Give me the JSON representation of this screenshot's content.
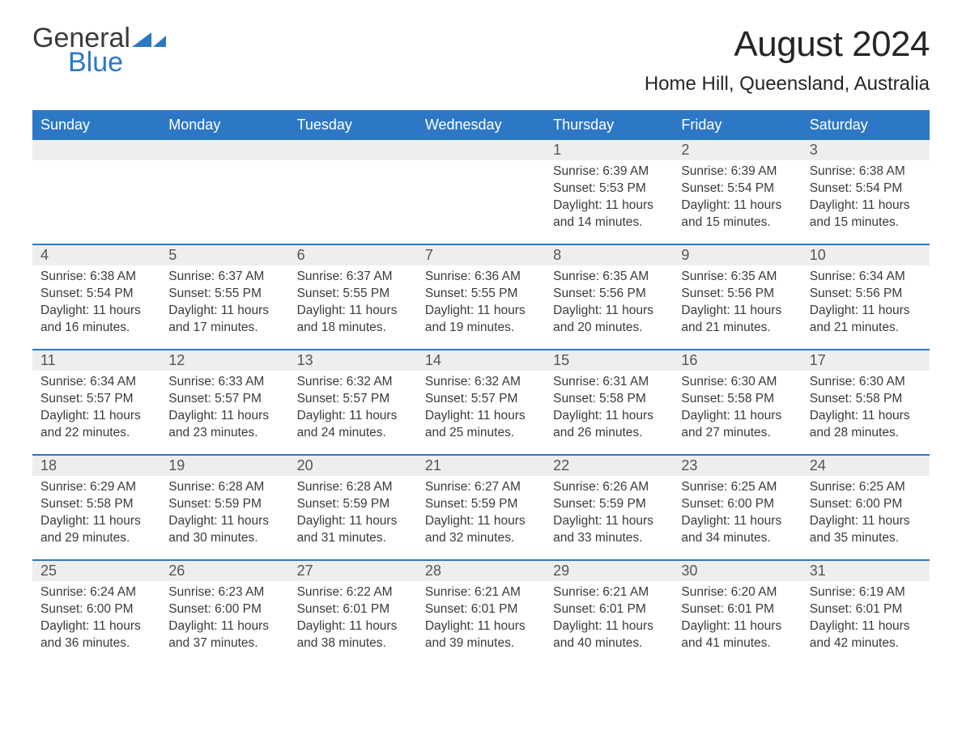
{
  "brand": {
    "word1": "General",
    "word2": "Blue",
    "triangle_color": "#2d78c6",
    "word1_color": "#3a3a3a",
    "word2_color": "#2d78c6"
  },
  "title": "August 2024",
  "location": "Home Hill, Queensland, Australia",
  "colors": {
    "header_bg": "#2d78c6",
    "header_text": "#ffffff",
    "daynum_bg": "#eceeef",
    "text": "#3a3a3a",
    "week_border": "#2d78c6",
    "page_bg": "#ffffff"
  },
  "fonts": {
    "title_size_pt": 33,
    "location_size_pt": 18,
    "dow_size_pt": 13,
    "daynum_size_pt": 13,
    "body_size_pt": 11.5
  },
  "days_of_week": [
    "Sunday",
    "Monday",
    "Tuesday",
    "Wednesday",
    "Thursday",
    "Friday",
    "Saturday"
  ],
  "labels": {
    "sunrise": "Sunrise:",
    "sunset": "Sunset:",
    "daylight": "Daylight:"
  },
  "weeks": [
    [
      {
        "n": "",
        "empty": true
      },
      {
        "n": "",
        "empty": true
      },
      {
        "n": "",
        "empty": true
      },
      {
        "n": "",
        "empty": true
      },
      {
        "n": "1",
        "sunrise": "6:39 AM",
        "sunset": "5:53 PM",
        "daylight": "11 hours and 14 minutes."
      },
      {
        "n": "2",
        "sunrise": "6:39 AM",
        "sunset": "5:54 PM",
        "daylight": "11 hours and 15 minutes."
      },
      {
        "n": "3",
        "sunrise": "6:38 AM",
        "sunset": "5:54 PM",
        "daylight": "11 hours and 15 minutes."
      }
    ],
    [
      {
        "n": "4",
        "sunrise": "6:38 AM",
        "sunset": "5:54 PM",
        "daylight": "11 hours and 16 minutes."
      },
      {
        "n": "5",
        "sunrise": "6:37 AM",
        "sunset": "5:55 PM",
        "daylight": "11 hours and 17 minutes."
      },
      {
        "n": "6",
        "sunrise": "6:37 AM",
        "sunset": "5:55 PM",
        "daylight": "11 hours and 18 minutes."
      },
      {
        "n": "7",
        "sunrise": "6:36 AM",
        "sunset": "5:55 PM",
        "daylight": "11 hours and 19 minutes."
      },
      {
        "n": "8",
        "sunrise": "6:35 AM",
        "sunset": "5:56 PM",
        "daylight": "11 hours and 20 minutes."
      },
      {
        "n": "9",
        "sunrise": "6:35 AM",
        "sunset": "5:56 PM",
        "daylight": "11 hours and 21 minutes."
      },
      {
        "n": "10",
        "sunrise": "6:34 AM",
        "sunset": "5:56 PM",
        "daylight": "11 hours and 21 minutes."
      }
    ],
    [
      {
        "n": "11",
        "sunrise": "6:34 AM",
        "sunset": "5:57 PM",
        "daylight": "11 hours and 22 minutes."
      },
      {
        "n": "12",
        "sunrise": "6:33 AM",
        "sunset": "5:57 PM",
        "daylight": "11 hours and 23 minutes."
      },
      {
        "n": "13",
        "sunrise": "6:32 AM",
        "sunset": "5:57 PM",
        "daylight": "11 hours and 24 minutes."
      },
      {
        "n": "14",
        "sunrise": "6:32 AM",
        "sunset": "5:57 PM",
        "daylight": "11 hours and 25 minutes."
      },
      {
        "n": "15",
        "sunrise": "6:31 AM",
        "sunset": "5:58 PM",
        "daylight": "11 hours and 26 minutes."
      },
      {
        "n": "16",
        "sunrise": "6:30 AM",
        "sunset": "5:58 PM",
        "daylight": "11 hours and 27 minutes."
      },
      {
        "n": "17",
        "sunrise": "6:30 AM",
        "sunset": "5:58 PM",
        "daylight": "11 hours and 28 minutes."
      }
    ],
    [
      {
        "n": "18",
        "sunrise": "6:29 AM",
        "sunset": "5:58 PM",
        "daylight": "11 hours and 29 minutes."
      },
      {
        "n": "19",
        "sunrise": "6:28 AM",
        "sunset": "5:59 PM",
        "daylight": "11 hours and 30 minutes."
      },
      {
        "n": "20",
        "sunrise": "6:28 AM",
        "sunset": "5:59 PM",
        "daylight": "11 hours and 31 minutes."
      },
      {
        "n": "21",
        "sunrise": "6:27 AM",
        "sunset": "5:59 PM",
        "daylight": "11 hours and 32 minutes."
      },
      {
        "n": "22",
        "sunrise": "6:26 AM",
        "sunset": "5:59 PM",
        "daylight": "11 hours and 33 minutes."
      },
      {
        "n": "23",
        "sunrise": "6:25 AM",
        "sunset": "6:00 PM",
        "daylight": "11 hours and 34 minutes."
      },
      {
        "n": "24",
        "sunrise": "6:25 AM",
        "sunset": "6:00 PM",
        "daylight": "11 hours and 35 minutes."
      }
    ],
    [
      {
        "n": "25",
        "sunrise": "6:24 AM",
        "sunset": "6:00 PM",
        "daylight": "11 hours and 36 minutes."
      },
      {
        "n": "26",
        "sunrise": "6:23 AM",
        "sunset": "6:00 PM",
        "daylight": "11 hours and 37 minutes."
      },
      {
        "n": "27",
        "sunrise": "6:22 AM",
        "sunset": "6:01 PM",
        "daylight": "11 hours and 38 minutes."
      },
      {
        "n": "28",
        "sunrise": "6:21 AM",
        "sunset": "6:01 PM",
        "daylight": "11 hours and 39 minutes."
      },
      {
        "n": "29",
        "sunrise": "6:21 AM",
        "sunset": "6:01 PM",
        "daylight": "11 hours and 40 minutes."
      },
      {
        "n": "30",
        "sunrise": "6:20 AM",
        "sunset": "6:01 PM",
        "daylight": "11 hours and 41 minutes."
      },
      {
        "n": "31",
        "sunrise": "6:19 AM",
        "sunset": "6:01 PM",
        "daylight": "11 hours and 42 minutes."
      }
    ]
  ]
}
